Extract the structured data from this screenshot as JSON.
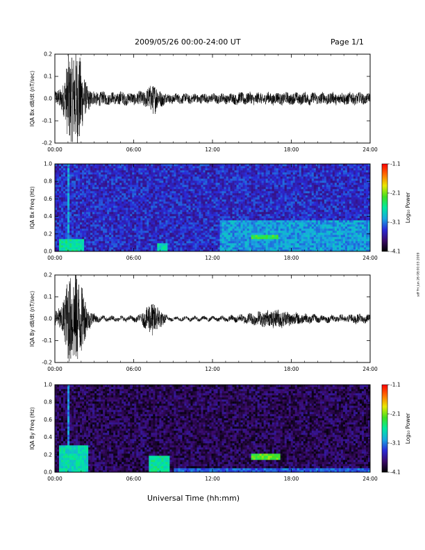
{
  "header": {
    "title": "2009/05/26  00:00-24:00 UT",
    "page": "Page 1/1"
  },
  "xaxis": {
    "title": "Universal Time (hh:mm)",
    "ticks": [
      "00:00",
      "06:00",
      "12:00",
      "18:00",
      "24:00"
    ],
    "range_hours": [
      0,
      24
    ]
  },
  "colorbar": {
    "title": "Log₁₀ Power",
    "ticks": [
      "-1.1",
      "-2.1",
      "-3.1",
      "-4.1"
    ],
    "range": [
      -4.1,
      -1.1
    ],
    "colors": [
      "#000000",
      "#3a0a6a",
      "#2a2ad8",
      "#18a8e0",
      "#00e8a0",
      "#40e020",
      "#e8e800",
      "#ff7000",
      "#ff0000"
    ]
  },
  "stamp": "sdf Fri Jun 26 08:00:03 2009",
  "chart_data": [
    {
      "type": "line",
      "panel": "bx-dbdt",
      "ylabel": "IQA Bx dB/dt (nT/sec)",
      "yticks": [
        "0.2",
        "0.1",
        "0.0",
        "-0.1",
        "-0.2"
      ],
      "ylim": [
        -0.2,
        0.2
      ],
      "x_unit": "hours UT",
      "envelope": {
        "x": [
          0.0,
          0.5,
          0.8,
          1.0,
          1.3,
          1.6,
          1.9,
          2.2,
          2.5,
          3.0,
          3.5,
          4.0,
          4.5,
          5.0,
          5.5,
          6.0,
          6.5,
          7.0,
          7.3,
          7.6,
          7.9,
          8.2,
          8.6,
          9.0,
          10.0,
          11.0,
          12.0,
          13.0,
          14.0,
          15.0,
          16.0,
          17.0,
          18.0,
          19.0,
          20.0,
          21.0,
          22.0,
          23.0,
          24.0
        ],
        "amplitude": [
          0.03,
          0.05,
          0.1,
          0.2,
          0.19,
          0.22,
          0.2,
          0.1,
          0.05,
          0.03,
          0.03,
          0.025,
          0.025,
          0.03,
          0.025,
          0.025,
          0.03,
          0.04,
          0.06,
          0.07,
          0.04,
          0.03,
          0.02,
          0.02,
          0.02,
          0.02,
          0.02,
          0.02,
          0.025,
          0.025,
          0.025,
          0.025,
          0.025,
          0.025,
          0.025,
          0.025,
          0.025,
          0.025,
          0.02
        ]
      },
      "color": "#000000"
    },
    {
      "type": "heatmap",
      "panel": "bx-spectrogram",
      "ylabel": "IQA Bx Freq (Hz)",
      "yticks": [
        "1.0",
        "0.8",
        "0.6",
        "0.4",
        "0.2",
        "0.0"
      ],
      "ylim": [
        0.0,
        1.0
      ],
      "zlim": [
        -4.1,
        -1.1
      ],
      "background_log_power": -3.4,
      "features": [
        {
          "x": [
            0.3,
            2.2
          ],
          "y": [
            0.0,
            0.15
          ],
          "log_power": -2.6
        },
        {
          "x": [
            0.9,
            1.1
          ],
          "y": [
            0.0,
            1.0
          ],
          "log_power": -3.0
        },
        {
          "x": [
            5.35,
            5.45
          ],
          "y": [
            0.0,
            0.85
          ],
          "log_power": -2.8
        },
        {
          "x": [
            7.8,
            8.6
          ],
          "y": [
            0.0,
            0.1
          ],
          "log_power": -2.7
        },
        {
          "x": [
            15.0,
            17.0
          ],
          "y": [
            0.15,
            0.19
          ],
          "log_power": -2.3
        },
        {
          "x": [
            12.5,
            24.0
          ],
          "y": [
            0.0,
            0.35
          ],
          "log_power": -3.0
        },
        {
          "x": [
            19.2,
            19.3
          ],
          "y": [
            0.0,
            1.0
          ],
          "log_power": -3.0
        },
        {
          "x": [
            18.7,
            18.8
          ],
          "y": [
            0.0,
            1.0
          ],
          "log_power": -3.1
        }
      ]
    },
    {
      "type": "line",
      "panel": "by-dbdt",
      "ylabel": "IQA By dB/dt (nT/sec)",
      "yticks": [
        "0.2",
        "0.1",
        "0.0",
        "-0.1",
        "-0.2"
      ],
      "ylim": [
        -0.2,
        0.2
      ],
      "x_unit": "hours UT",
      "envelope": {
        "x": [
          0.0,
          0.5,
          0.8,
          1.0,
          1.3,
          1.6,
          1.9,
          2.2,
          2.5,
          3.0,
          3.5,
          4.0,
          4.5,
          5.0,
          5.5,
          6.0,
          6.5,
          7.0,
          7.3,
          7.6,
          7.9,
          8.2,
          8.6,
          9.0,
          10.0,
          11.0,
          12.0,
          13.0,
          14.0,
          15.0,
          16.0,
          17.0,
          18.0,
          19.0,
          20.0,
          21.0,
          22.0,
          23.0,
          24.0
        ],
        "amplitude": [
          0.03,
          0.06,
          0.12,
          0.2,
          0.2,
          0.22,
          0.18,
          0.12,
          0.05,
          0.02,
          0.01,
          0.01,
          0.01,
          0.01,
          0.01,
          0.01,
          0.015,
          0.05,
          0.08,
          0.07,
          0.05,
          0.03,
          0.01,
          0.008,
          0.008,
          0.008,
          0.008,
          0.01,
          0.015,
          0.025,
          0.035,
          0.04,
          0.03,
          0.02,
          0.015,
          0.015,
          0.015,
          0.02,
          0.015
        ]
      },
      "color": "#000000"
    },
    {
      "type": "heatmap",
      "panel": "by-spectrogram",
      "ylabel": "IQA By Freq (Hz)",
      "yticks": [
        "1.0",
        "0.8",
        "0.6",
        "0.4",
        "0.2",
        "0.0"
      ],
      "ylim": [
        0.0,
        1.0
      ],
      "zlim": [
        -4.1,
        -1.1
      ],
      "background_log_power": -3.8,
      "features": [
        {
          "x": [
            0.3,
            2.5
          ],
          "y": [
            0.0,
            0.3
          ],
          "log_power": -2.7
        },
        {
          "x": [
            0.9,
            1.1
          ],
          "y": [
            0.0,
            1.0
          ],
          "log_power": -3.1
        },
        {
          "x": [
            5.35,
            5.45
          ],
          "y": [
            0.0,
            0.9
          ],
          "log_power": -2.8
        },
        {
          "x": [
            7.2,
            8.8
          ],
          "y": [
            0.0,
            0.2
          ],
          "log_power": -2.6
        },
        {
          "x": [
            15.0,
            17.2
          ],
          "y": [
            0.15,
            0.22
          ],
          "log_power": -2.2
        },
        {
          "x": [
            9.0,
            24.0
          ],
          "y": [
            0.0,
            0.05
          ],
          "log_power": -3.2
        }
      ]
    }
  ]
}
